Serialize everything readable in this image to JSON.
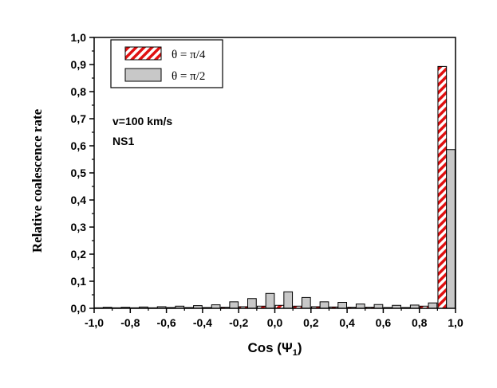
{
  "chart_data": {
    "type": "bar",
    "xlabel": "Cos (Ψ",
    "xlabel_sub": "1",
    "xlabel_close": ")",
    "ylabel": "Relative coalescence rate",
    "xlim": [
      -1.0,
      1.0
    ],
    "ylim": [
      0.0,
      1.0
    ],
    "xticks": [
      "-1,0",
      "-0,8",
      "-0,6",
      "-0,4",
      "-0,2",
      "0,0",
      "0,2",
      "0,4",
      "0,6",
      "0,8",
      "1,0"
    ],
    "yticks": [
      "0,0",
      "0,1",
      "0,2",
      "0,3",
      "0,4",
      "0,5",
      "0,6",
      "0,7",
      "0,8",
      "0,9",
      "1,0"
    ],
    "grid": false,
    "legend_position": "top-left",
    "annotations": [
      "v=100 km/s",
      "NS1"
    ],
    "x": [
      -0.95,
      -0.85,
      -0.75,
      -0.65,
      -0.55,
      -0.45,
      -0.35,
      -0.25,
      -0.15,
      -0.05,
      0.05,
      0.15,
      0.25,
      0.35,
      0.45,
      0.55,
      0.65,
      0.75,
      0.85,
      0.95
    ],
    "series": [
      {
        "name": "θ = π/4",
        "color": "#dd1111",
        "pattern": "red-white-diagonal-hatch",
        "values": [
          0.002,
          0.002,
          0.002,
          0.002,
          0.003,
          0.003,
          0.003,
          0.004,
          0.006,
          0.008,
          0.011,
          0.008,
          0.006,
          0.005,
          0.004,
          0.004,
          0.003,
          0.003,
          0.008,
          0.893
        ]
      },
      {
        "name": "θ = π/2",
        "color": "#c8c8c8",
        "values": [
          0.004,
          0.004,
          0.005,
          0.006,
          0.008,
          0.01,
          0.013,
          0.024,
          0.036,
          0.055,
          0.061,
          0.04,
          0.024,
          0.022,
          0.016,
          0.014,
          0.011,
          0.012,
          0.02,
          0.586
        ]
      }
    ]
  }
}
